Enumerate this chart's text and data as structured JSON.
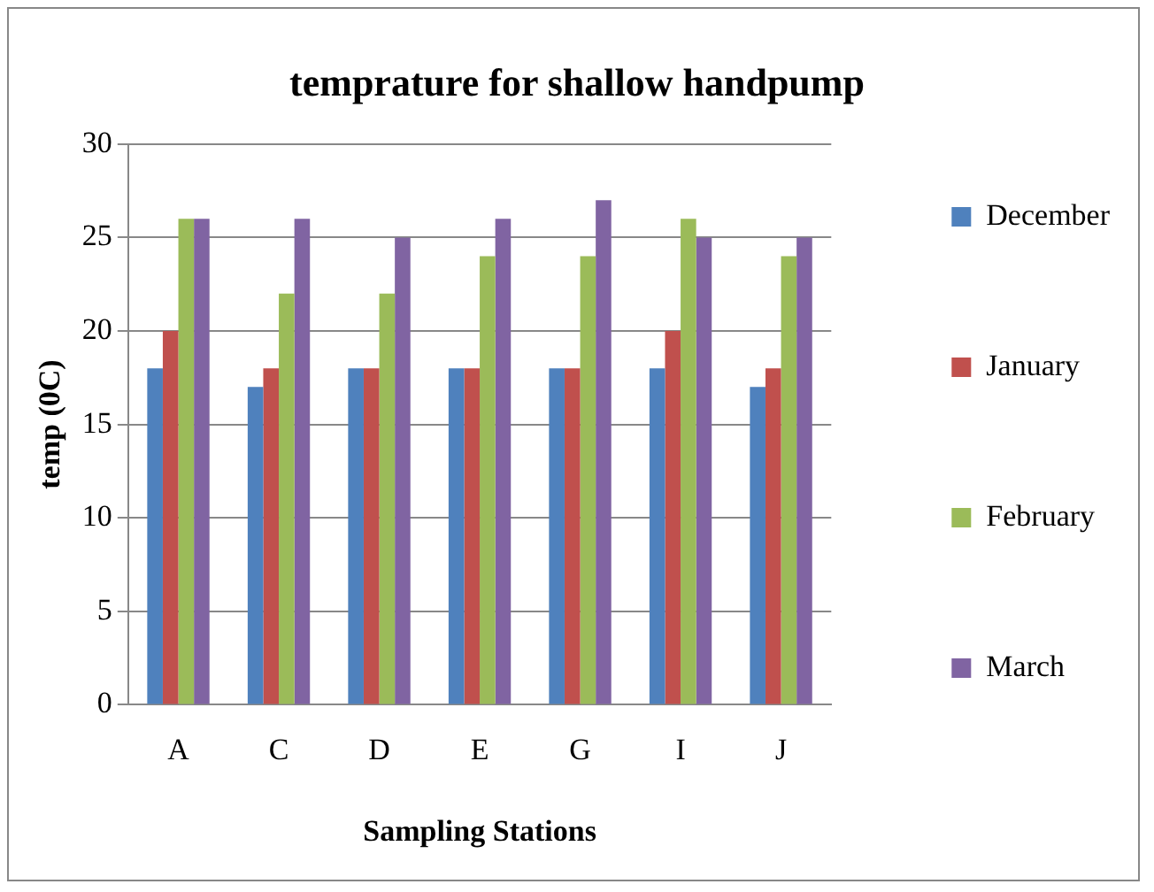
{
  "chart_data": {
    "type": "bar",
    "title": "temprature for shallow handpump",
    "xlabel": "Sampling Stations",
    "ylabel": "temp (0C)",
    "categories": [
      "A",
      "C",
      "D",
      "E",
      "G",
      "I",
      "J"
    ],
    "series": [
      {
        "name": "December",
        "color": "#4f81bd",
        "values": [
          18,
          17,
          18,
          18,
          18,
          18,
          17
        ]
      },
      {
        "name": "January",
        "color": "#c0504d",
        "values": [
          20,
          18,
          18,
          18,
          18,
          20,
          18
        ]
      },
      {
        "name": "February",
        "color": "#9bbb59",
        "values": [
          26,
          22,
          22,
          24,
          24,
          26,
          24
        ]
      },
      {
        "name": "March",
        "color": "#8064a2",
        "values": [
          26,
          26,
          25,
          26,
          27,
          25,
          25
        ]
      }
    ],
    "ylim": [
      0,
      30
    ],
    "yticks": [
      0,
      5,
      10,
      15,
      20,
      25,
      30
    ],
    "grid": "y",
    "legend": "right"
  }
}
